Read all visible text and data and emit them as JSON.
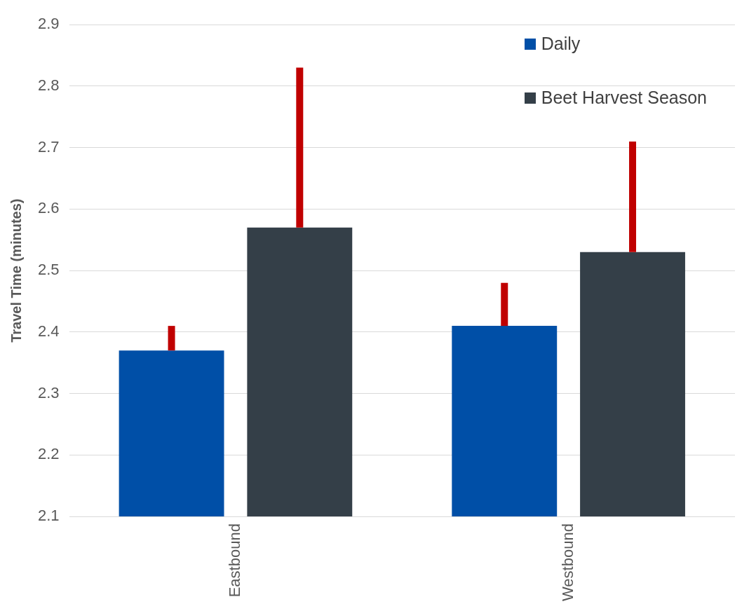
{
  "chart_data": {
    "type": "bar",
    "ylabel": "Travel Time (minutes)",
    "categories": [
      "Eastbound",
      "Westbound"
    ],
    "series": [
      {
        "name": "Daily",
        "color": "#004fa7",
        "values": [
          2.37,
          2.41
        ],
        "errors": [
          [
            2.37,
            2.41
          ],
          [
            2.41,
            2.48
          ]
        ]
      },
      {
        "name": "Beet Harvest Season",
        "color": "#343f48",
        "values": [
          2.57,
          2.53
        ],
        "errors": [
          [
            2.57,
            2.83
          ],
          [
            2.53,
            2.71
          ]
        ]
      }
    ],
    "ylim": [
      2.1,
      2.9
    ],
    "yticks": [
      2.1,
      2.2,
      2.3,
      2.4,
      2.5,
      2.6,
      2.7,
      2.8,
      2.9
    ],
    "grid": "y",
    "legend": "top right"
  }
}
